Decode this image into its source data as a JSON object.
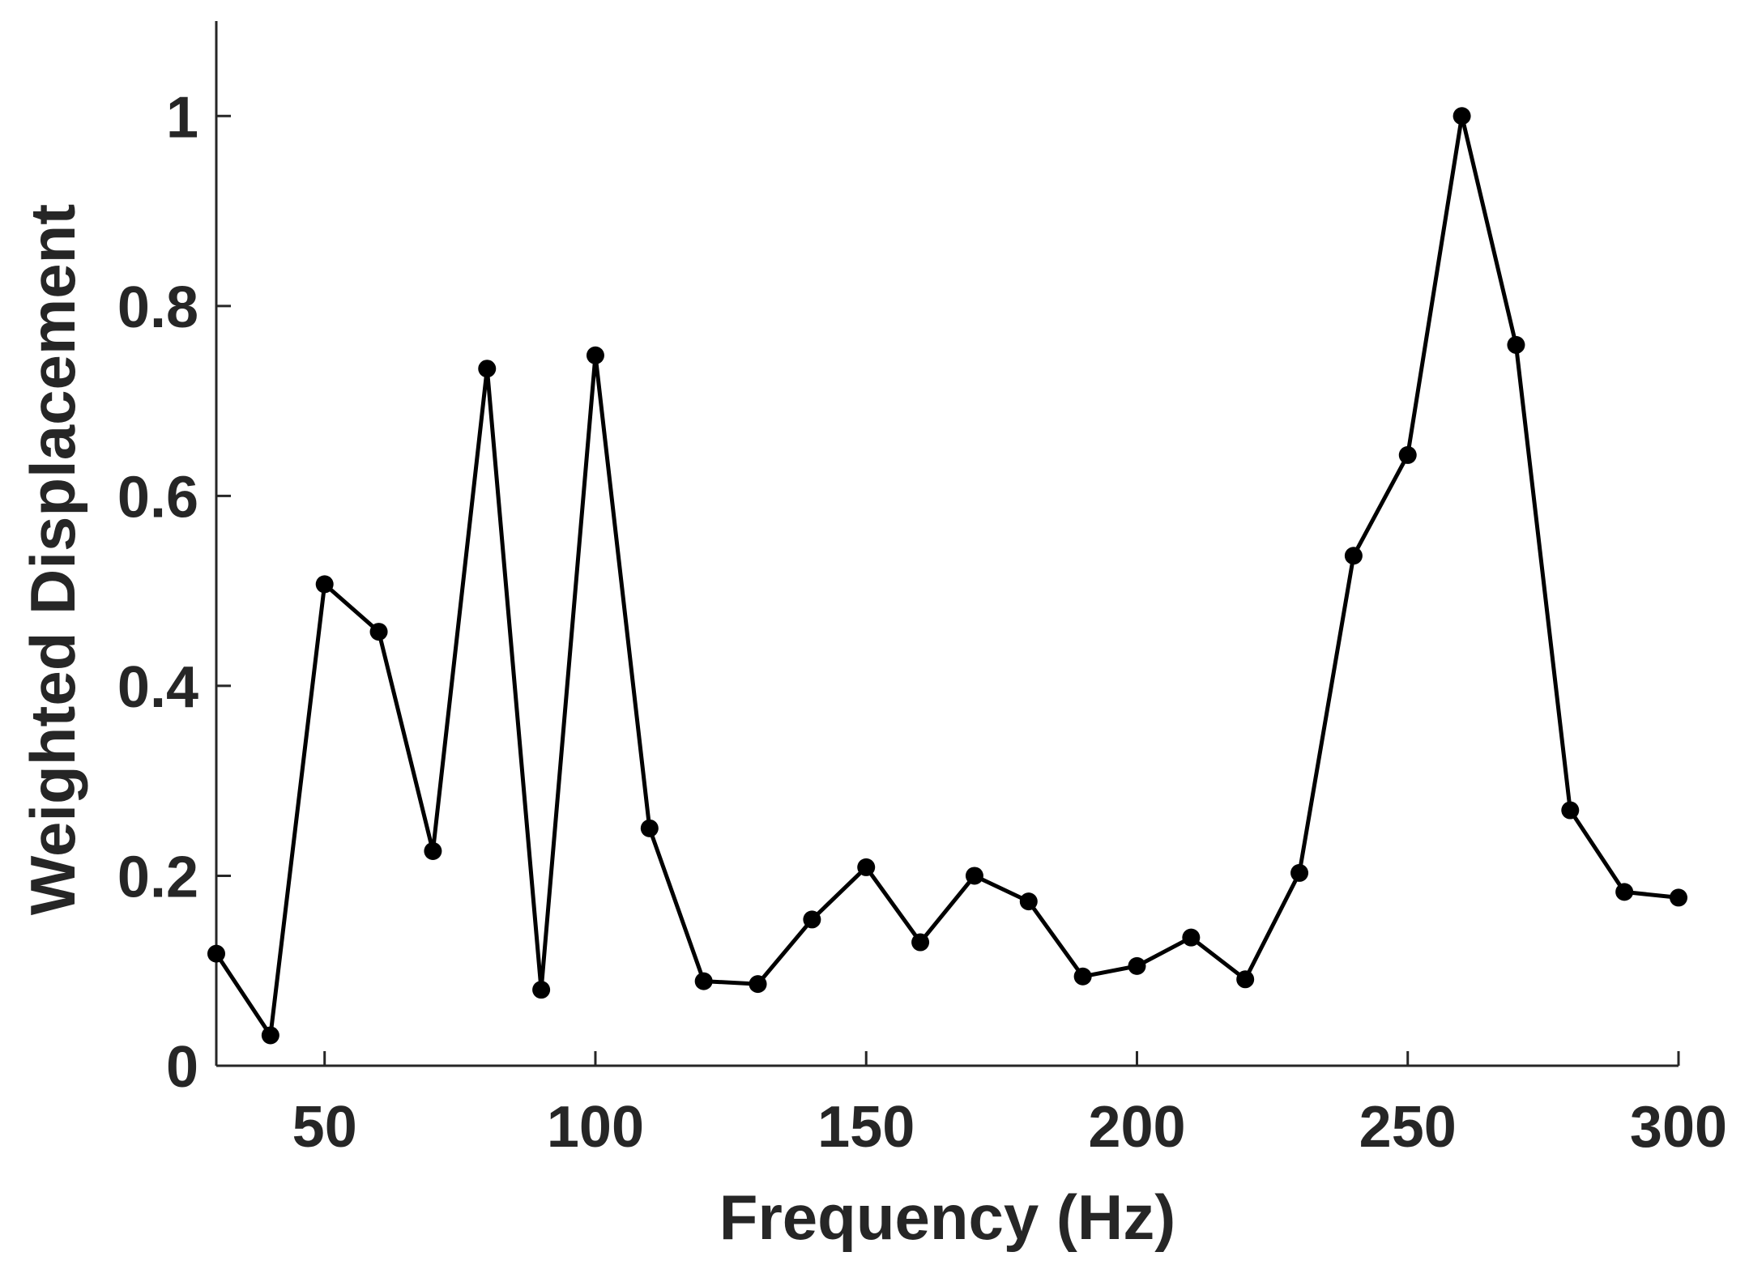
{
  "chart_data": {
    "type": "line",
    "title": "",
    "xlabel": "Frequency (Hz)",
    "ylabel": "Weighted Displacement",
    "xlim": [
      30,
      300
    ],
    "ylim": [
      0,
      1.1
    ],
    "xticks": [
      50,
      100,
      150,
      200,
      250,
      300
    ],
    "xtick_labels": [
      "50",
      "100",
      "150",
      "200",
      "250",
      "300"
    ],
    "yticks": [
      0,
      0.2,
      0.4,
      0.6,
      0.8,
      1
    ],
    "ytick_labels": [
      "0",
      "0.2",
      "0.4",
      "0.6",
      "0.8",
      "1"
    ],
    "grid": false,
    "legend": "none",
    "series": [
      {
        "color": "#000000",
        "marker": "circle",
        "x": [
          30,
          40,
          50,
          60,
          70,
          80,
          90,
          100,
          110,
          120,
          130,
          140,
          150,
          160,
          170,
          180,
          190,
          200,
          210,
          220,
          230,
          240,
          250,
          260,
          270,
          280,
          290,
          300
        ],
        "values": [
          0.118,
          0.032,
          0.507,
          0.457,
          0.226,
          0.734,
          0.08,
          0.748,
          0.25,
          0.089,
          0.086,
          0.154,
          0.209,
          0.13,
          0.2,
          0.173,
          0.094,
          0.105,
          0.135,
          0.091,
          0.203,
          0.537,
          0.643,
          1.0,
          0.759,
          0.269,
          0.183,
          0.177
        ]
      }
    ]
  }
}
